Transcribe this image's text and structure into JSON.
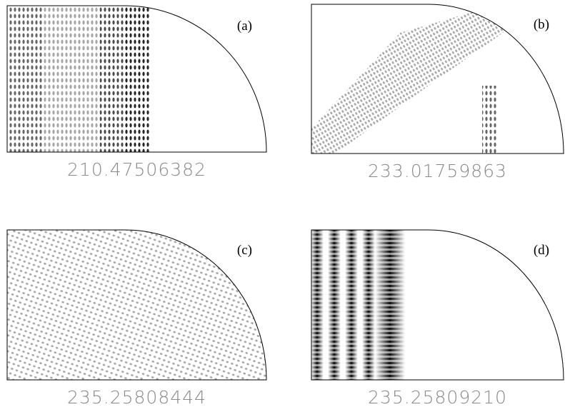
{
  "panels": [
    {
      "label": "(a)",
      "value": "210.47506382"
    },
    {
      "label": "(b)",
      "value": "233.01759863"
    },
    {
      "label": "(c)",
      "value": "235.25808444"
    },
    {
      "label": "(d)",
      "value": "235.25809210"
    }
  ]
}
